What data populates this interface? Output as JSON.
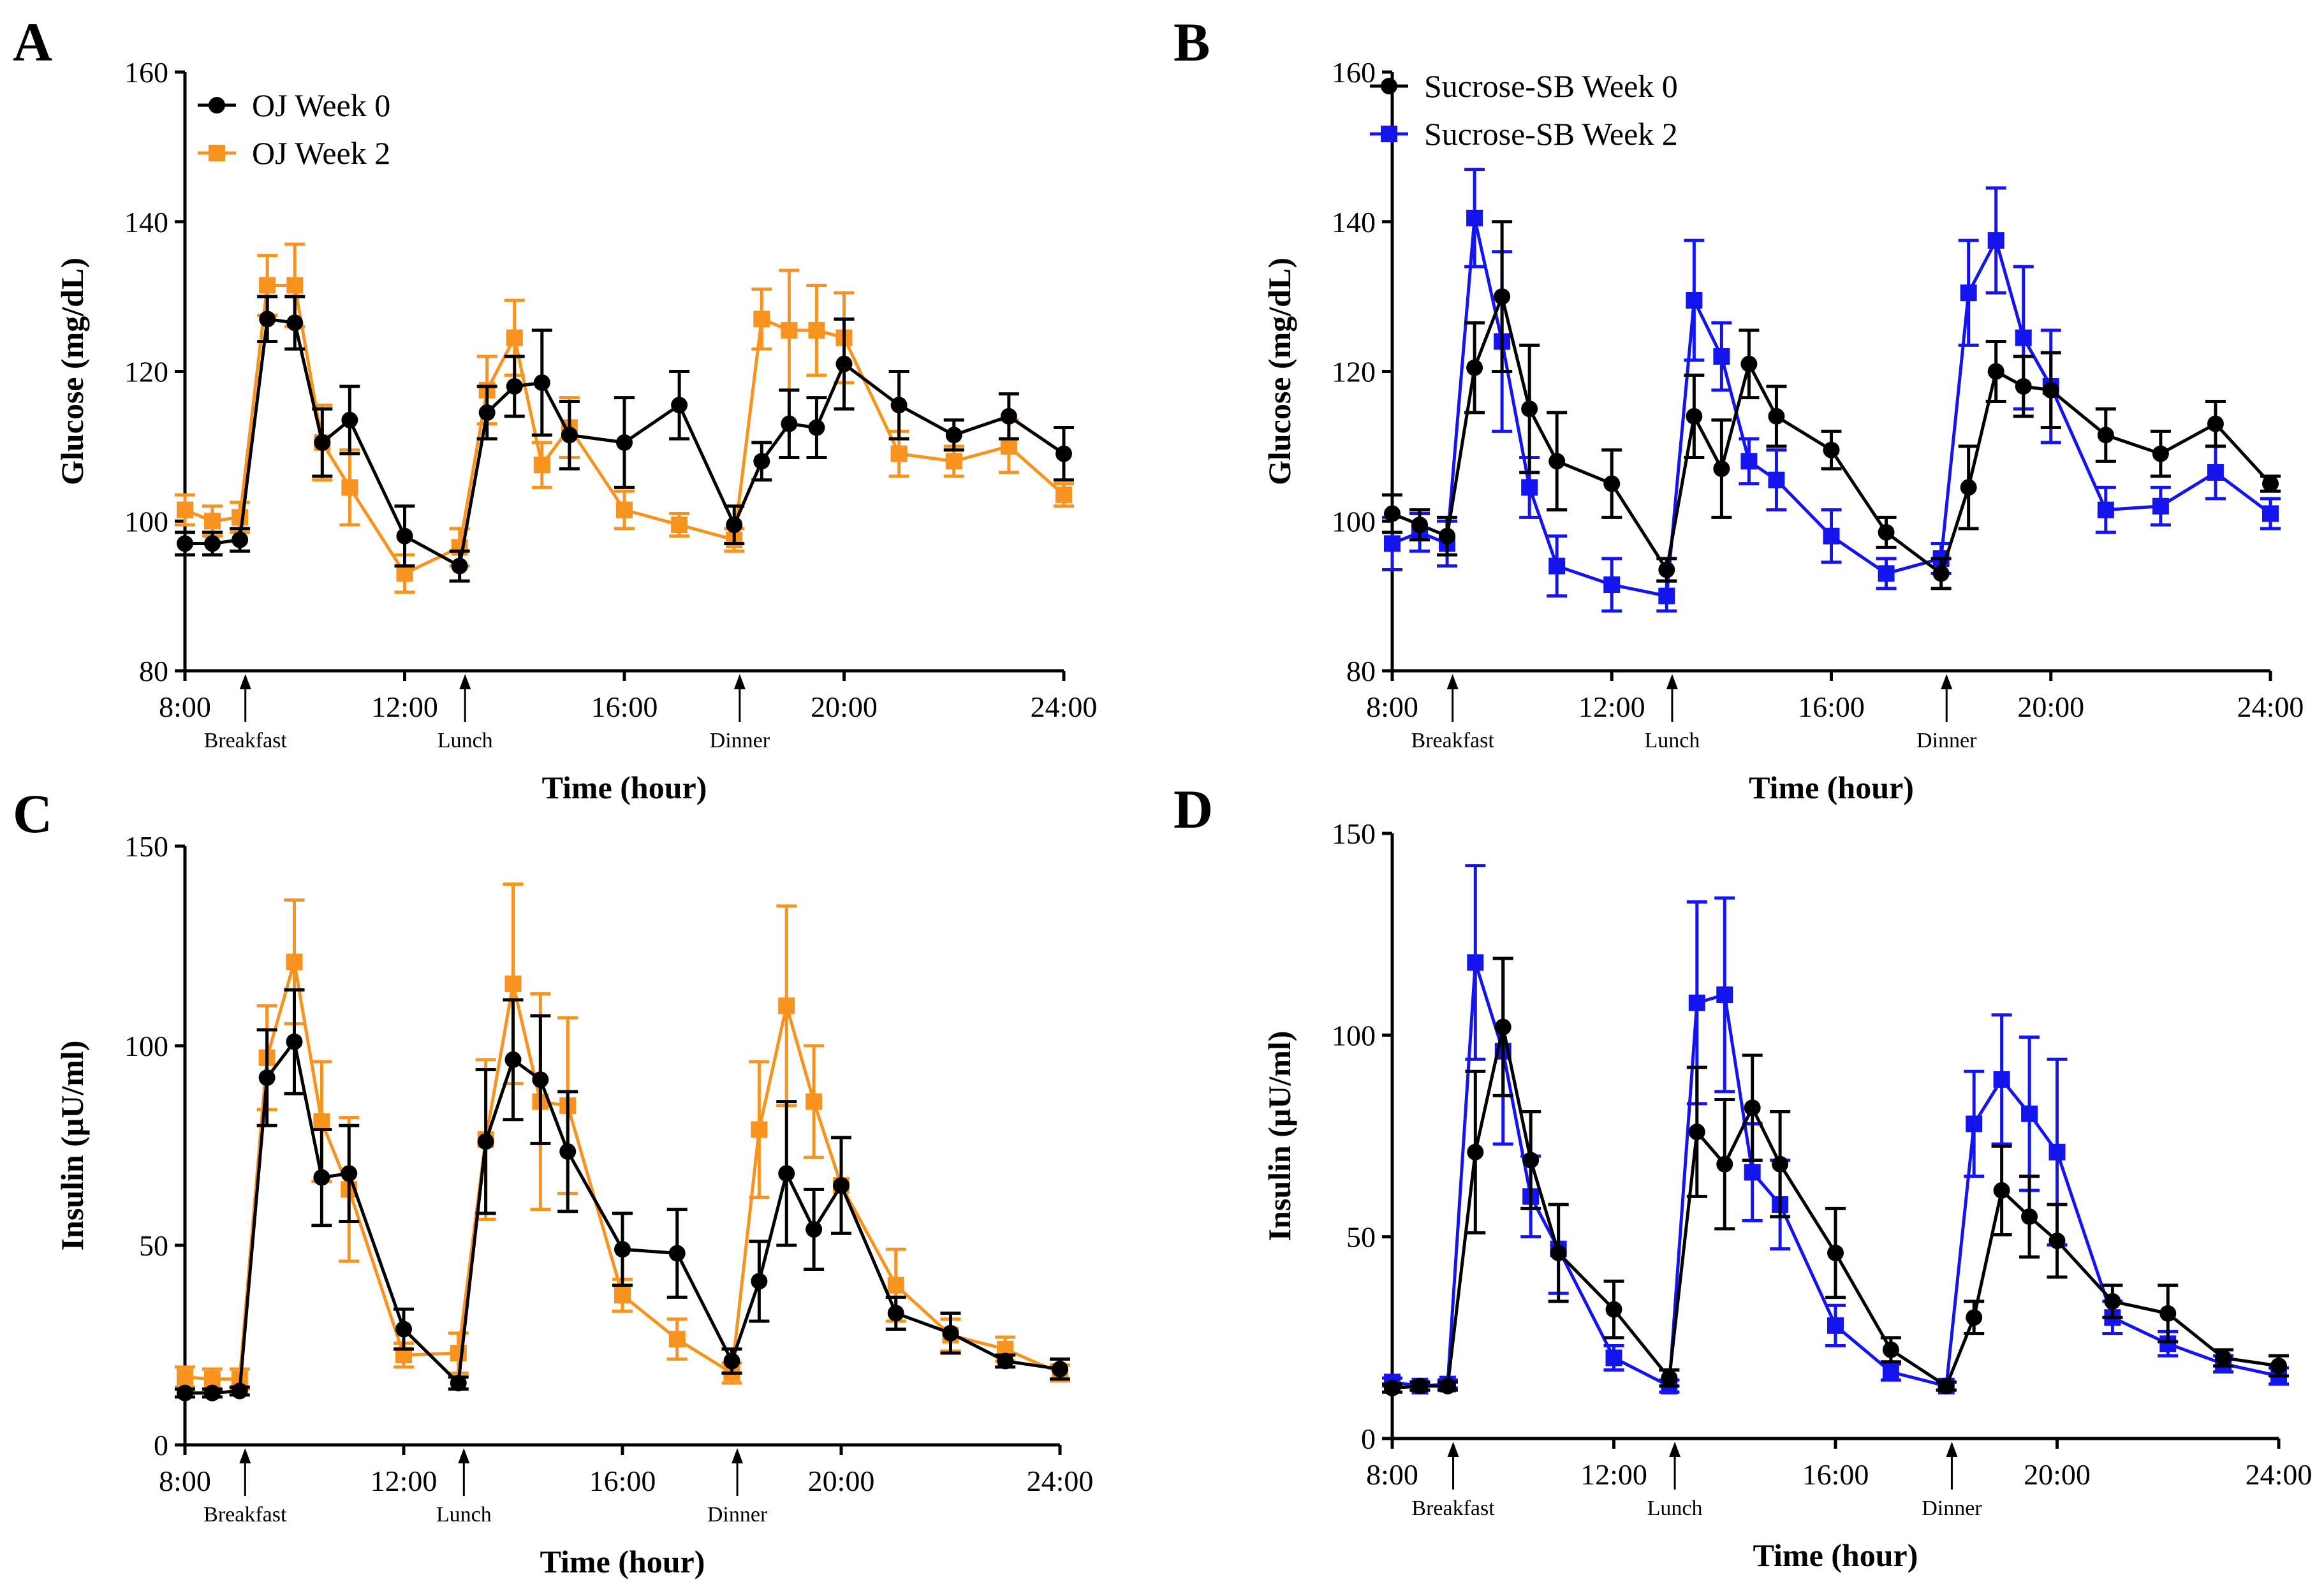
{
  "colors": {
    "week0": "#000000",
    "oj_week2": "#f7931e",
    "sb_week2": "#1414ee"
  },
  "chart_data": [
    {
      "panel": "A",
      "type": "line",
      "xlabel": "Time (hour)",
      "ylabel": "Glucose (mg/dL)",
      "xlim": [
        8,
        24
      ],
      "ylim": [
        80,
        160
      ],
      "xticks": [
        {
          "v": 8,
          "label": "8:00"
        },
        {
          "v": 12,
          "label": "12:00"
        },
        {
          "v": 16,
          "label": "16:00"
        },
        {
          "v": 20,
          "label": "20:00"
        },
        {
          "v": 24,
          "label": "24:00"
        }
      ],
      "yticks": [
        {
          "v": 80,
          "label": "80"
        },
        {
          "v": 100,
          "label": "100"
        },
        {
          "v": 120,
          "label": "120"
        },
        {
          "v": 140,
          "label": "140"
        },
        {
          "v": 160,
          "label": "160"
        }
      ],
      "meals": [
        {
          "t": 9.1,
          "label": "Breakfast"
        },
        {
          "t": 13.1,
          "label": "Lunch"
        },
        {
          "t": 18.1,
          "label": "Dinner"
        }
      ],
      "legend_position": "top-left",
      "series": [
        {
          "name": "OJ Week 0",
          "color": "#000000",
          "marker": "circle",
          "x": [
            8,
            8.5,
            9,
            9.5,
            10,
            10.5,
            11,
            12,
            13,
            13.5,
            14,
            14.5,
            15,
            16,
            17,
            18,
            18.5,
            19,
            19.5,
            20,
            21,
            22,
            23,
            24
          ],
          "y": [
            97,
            97,
            97.5,
            127,
            126.5,
            110.5,
            113.5,
            98,
            94,
            114.5,
            118,
            118.5,
            111.5,
            110.5,
            115.5,
            99.5,
            108,
            113,
            112.5,
            121,
            115.5,
            111.5,
            114,
            109
          ],
          "err": [
            1.5,
            1.5,
            1.5,
            3,
            3.5,
            4.5,
            4.5,
            4,
            2,
            3.5,
            4,
            7,
            4.5,
            6,
            4.5,
            2.5,
            2.5,
            4.5,
            4,
            6,
            4.5,
            2,
            3,
            3.5
          ]
        },
        {
          "name": "OJ Week 2",
          "color": "#f7931e",
          "marker": "square",
          "x": [
            8,
            8.5,
            9,
            9.5,
            10,
            10.5,
            11,
            12,
            13,
            13.5,
            14,
            14.5,
            15,
            16,
            17,
            18,
            18.5,
            19,
            19.5,
            20,
            21,
            22,
            23,
            24
          ],
          "y": [
            101.5,
            100,
            100.5,
            131.5,
            131.5,
            110.5,
            104.5,
            93,
            96.5,
            117.5,
            124.5,
            107.5,
            112.5,
            101.5,
            99.5,
            97.5,
            127,
            125.5,
            125.5,
            124.5,
            109,
            108,
            110,
            103.5
          ],
          "err": [
            2,
            2,
            2,
            4,
            5.5,
            5,
            5,
            2.5,
            2.5,
            4.5,
            5,
            3,
            4,
            2.5,
            1.5,
            1.5,
            4,
            8,
            6,
            6,
            3,
            2,
            3.5,
            1.5
          ]
        }
      ]
    },
    {
      "panel": "B",
      "type": "line",
      "xlabel": "Time (hour)",
      "ylabel": "Glucose (mg/dL)",
      "xlim": [
        8,
        24
      ],
      "ylim": [
        80,
        160
      ],
      "xticks": [
        {
          "v": 8,
          "label": "8:00"
        },
        {
          "v": 12,
          "label": "12:00"
        },
        {
          "v": 16,
          "label": "16:00"
        },
        {
          "v": 20,
          "label": "20:00"
        },
        {
          "v": 24,
          "label": "24:00"
        }
      ],
      "yticks": [
        {
          "v": 80,
          "label": "80"
        },
        {
          "v": 100,
          "label": "100"
        },
        {
          "v": 120,
          "label": "120"
        },
        {
          "v": 140,
          "label": "140"
        },
        {
          "v": 160,
          "label": "160"
        }
      ],
      "meals": [
        {
          "t": 9.1,
          "label": "Breakfast"
        },
        {
          "t": 13.1,
          "label": "Lunch"
        },
        {
          "t": 18.1,
          "label": "Dinner"
        }
      ],
      "legend_position": "top-left",
      "series": [
        {
          "name": "Sucrose-SB Week 0",
          "color": "#000000",
          "marker": "circle",
          "x": [
            8,
            8.5,
            9,
            9.5,
            10,
            10.5,
            11,
            12,
            13,
            13.5,
            14,
            14.5,
            15,
            16,
            17,
            18,
            18.5,
            19,
            19.5,
            20,
            21,
            22,
            23,
            24
          ],
          "y": [
            101,
            99.5,
            98,
            120.5,
            130,
            115,
            108,
            105,
            93.5,
            114,
            107,
            121,
            114,
            109.5,
            98.5,
            93,
            104.5,
            120,
            118,
            117.5,
            111.5,
            109,
            113,
            105
          ],
          "err": [
            2.5,
            2,
            2.5,
            6,
            10,
            8.5,
            6.5,
            4.5,
            1.5,
            5.5,
            6.5,
            4.5,
            4,
            2.5,
            2,
            2,
            5.5,
            4,
            4,
            5,
            3.5,
            3,
            3,
            1
          ]
        },
        {
          "name": "Sucrose-SB Week 2",
          "color": "#1414ee",
          "marker": "square",
          "x": [
            8,
            8.5,
            9,
            9.5,
            10,
            10.5,
            11,
            12,
            13,
            13.5,
            14,
            14.5,
            15,
            16,
            17,
            18,
            18.5,
            19,
            19.5,
            20,
            21,
            22,
            23,
            24
          ],
          "y": [
            97,
            98.5,
            97,
            140.5,
            124,
            104.5,
            94,
            91.5,
            90,
            129.5,
            122,
            108,
            105.5,
            98,
            93,
            95,
            130.5,
            137.5,
            124.5,
            118,
            101.5,
            102,
            106.5,
            101
          ],
          "err": [
            3.5,
            2.5,
            3,
            6.5,
            12,
            4,
            4,
            3.5,
            2,
            8,
            4.5,
            3,
            4,
            3.5,
            2,
            2,
            7,
            7,
            9.5,
            7.5,
            3,
            2.5,
            3.5,
            2
          ]
        }
      ]
    },
    {
      "panel": "C",
      "type": "line",
      "xlabel": "Time (hour)",
      "ylabel": "Insulin (μU/ml)",
      "xlim": [
        8,
        24
      ],
      "ylim": [
        0,
        150
      ],
      "xticks": [
        {
          "v": 8,
          "label": "8:00"
        },
        {
          "v": 12,
          "label": "12:00"
        },
        {
          "v": 16,
          "label": "16:00"
        },
        {
          "v": 20,
          "label": "20:00"
        },
        {
          "v": 24,
          "label": "24:00"
        }
      ],
      "yticks": [
        {
          "v": 0,
          "label": "0"
        },
        {
          "v": 50,
          "label": "50"
        },
        {
          "v": 100,
          "label": "100"
        },
        {
          "v": 150,
          "label": "150"
        }
      ],
      "meals": [
        {
          "t": 9.1,
          "label": "Breakfast"
        },
        {
          "t": 13.1,
          "label": "Lunch"
        },
        {
          "t": 18.1,
          "label": "Dinner"
        }
      ],
      "legend_position": "none",
      "series": [
        {
          "name": "OJ Week 0",
          "color": "#000000",
          "marker": "circle",
          "x": [
            8,
            8.5,
            9,
            9.5,
            10,
            10.5,
            11,
            12,
            13,
            13.5,
            14,
            14.5,
            15,
            16,
            17,
            18,
            18.5,
            19,
            19.5,
            20,
            21,
            22,
            23,
            24
          ],
          "y": [
            13,
            13,
            13.5,
            92,
            101,
            67,
            68,
            29,
            15.5,
            76,
            96.5,
            91.5,
            73.5,
            49,
            48,
            21,
            41,
            68,
            54,
            65,
            33,
            28,
            21,
            19
          ],
          "err": [
            1,
            1,
            1,
            12,
            13,
            12,
            12,
            5,
            1.5,
            18,
            15,
            16,
            15,
            9,
            11,
            3,
            10,
            18,
            10,
            12,
            4,
            5,
            1.5,
            2.5
          ]
        },
        {
          "name": "OJ Week 2",
          "color": "#f7931e",
          "marker": "square",
          "x": [
            8,
            8.5,
            9,
            9.5,
            10,
            10.5,
            11,
            12,
            13,
            13.5,
            14,
            14.5,
            15,
            16,
            17,
            18,
            18.5,
            19,
            19.5,
            20,
            21,
            22,
            23,
            24
          ],
          "y": [
            17,
            16.5,
            16.5,
            97,
            121,
            81,
            64,
            22.5,
            23,
            76.5,
            115.5,
            86,
            85,
            37.5,
            26.5,
            18,
            79,
            110,
            86,
            65,
            40,
            27.5,
            24,
            18
          ],
          "err": [
            2.5,
            2.5,
            2.5,
            13,
            15.5,
            15,
            18,
            3,
            5,
            20,
            25,
            27,
            22,
            4,
            5,
            2.5,
            17,
            25,
            14,
            12,
            9,
            4,
            3,
            2
          ]
        }
      ]
    },
    {
      "panel": "D",
      "type": "line",
      "xlabel": "Time (hour)",
      "ylabel": "Insulin (μU/ml)",
      "xlim": [
        8,
        24
      ],
      "ylim": [
        0,
        150
      ],
      "xticks": [
        {
          "v": 8,
          "label": "8:00"
        },
        {
          "v": 12,
          "label": "12:00"
        },
        {
          "v": 16,
          "label": "16:00"
        },
        {
          "v": 20,
          "label": "20:00"
        },
        {
          "v": 24,
          "label": "24:00"
        }
      ],
      "yticks": [
        {
          "v": 0,
          "label": "0"
        },
        {
          "v": 50,
          "label": "50"
        },
        {
          "v": 100,
          "label": "100"
        },
        {
          "v": 150,
          "label": "150"
        }
      ],
      "meals": [
        {
          "t": 9.1,
          "label": "Breakfast"
        },
        {
          "t": 13.1,
          "label": "Lunch"
        },
        {
          "t": 18.1,
          "label": "Dinner"
        }
      ],
      "legend_position": "none",
      "series": [
        {
          "name": "Sucrose-SB Week 0",
          "color": "#000000",
          "marker": "circle",
          "x": [
            8,
            8.5,
            9,
            9.5,
            10,
            10.5,
            11,
            12,
            13,
            13.5,
            14,
            14.5,
            15,
            16,
            17,
            18,
            18.5,
            19,
            19.5,
            20,
            21,
            22,
            23,
            24
          ],
          "y": [
            12.5,
            13,
            13,
            71,
            102,
            69,
            46,
            32,
            15,
            76,
            68,
            82,
            68,
            46,
            22,
            13,
            30,
            61.5,
            55,
            49,
            34,
            31,
            20,
            18
          ],
          "err": [
            1,
            1,
            1,
            20,
            17,
            12,
            12,
            7,
            2,
            16,
            16,
            13,
            13,
            11,
            3,
            1,
            4,
            11,
            10,
            9,
            4,
            7,
            2,
            2.5
          ]
        },
        {
          "name": "Sucrose-SB Week 2",
          "color": "#1414ee",
          "marker": "square",
          "x": [
            8,
            8.5,
            9,
            9.5,
            10,
            10.5,
            11,
            12,
            13,
            13.5,
            14,
            14.5,
            15,
            16,
            17,
            18,
            18.5,
            19,
            19.5,
            20,
            21,
            22,
            23,
            24
          ],
          "y": [
            14,
            13,
            13.5,
            118,
            96,
            60,
            47,
            20,
            13,
            108,
            110,
            66,
            58,
            28,
            16.5,
            13,
            78,
            89,
            80.5,
            71,
            30,
            23.5,
            18.5,
            15.5
          ],
          "err": [
            1,
            1,
            1,
            24,
            23,
            10,
            11,
            3,
            1.5,
            25,
            24,
            12,
            11,
            5,
            2,
            1,
            13,
            16,
            19,
            23,
            4,
            3,
            2,
            2
          ]
        }
      ]
    }
  ]
}
